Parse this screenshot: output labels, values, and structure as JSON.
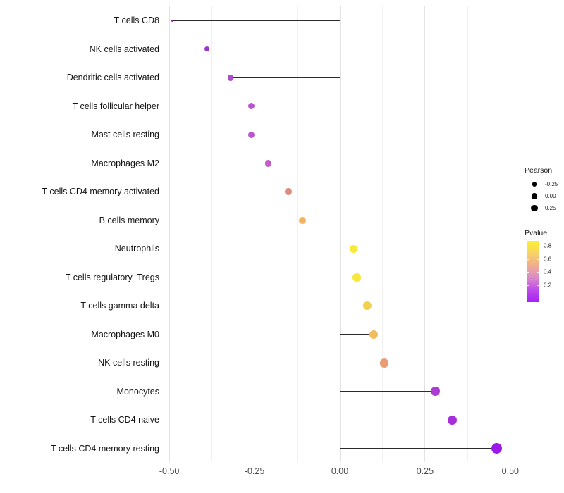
{
  "figure": {
    "background": "#ffffff",
    "legend": {
      "pearson": {
        "title": "Pearson",
        "dot_color": "#000000",
        "items": [
          {
            "label": "-0.25",
            "size": 6.5
          },
          {
            "label": "0.00",
            "size": 8.5
          },
          {
            "label": "0.25",
            "size": 9.5
          }
        ]
      },
      "pvalue": {
        "title": "Pvalue",
        "ticks": [
          "0.8",
          "0.6",
          "0.4",
          "0.2"
        ],
        "gradient": [
          "#FCF12E",
          "#F7D265",
          "#EFAE8E",
          "#DB8BC9",
          "#BC4BE9",
          "#A620F6"
        ]
      }
    }
  },
  "chart_data": {
    "type": "scatter",
    "subtype": "lollipop",
    "orientation": "horizontal",
    "title": "",
    "xlabel": "",
    "ylabel": "",
    "xlim": [
      -0.52,
      0.53
    ],
    "grid": "vertical light-gray major and minor lines on white, no axis lines",
    "legend_position": "right",
    "size_encodes": "Pearson",
    "color_encodes": "Pvalue",
    "x_ticks": [
      {
        "value": -0.5,
        "label": "-0.50"
      },
      {
        "value": -0.25,
        "label": "-0.25"
      },
      {
        "value": 0.0,
        "label": "0.00"
      },
      {
        "value": 0.25,
        "label": "0.25"
      },
      {
        "value": 0.5,
        "label": "0.50"
      }
    ],
    "x_minor_gridlines": [
      -0.375,
      -0.125,
      0.125,
      0.375
    ],
    "points": [
      {
        "category": "T cells CD8",
        "pearson": -0.49,
        "pvalue_approx": 0.02,
        "color": "#8A25BF",
        "size": 3
      },
      {
        "category": "NK cells activated",
        "pearson": -0.39,
        "pvalue_approx": 0.08,
        "color": "#9C36CB",
        "size": 7
      },
      {
        "category": "Dendritic cells activated",
        "pearson": -0.32,
        "pvalue_approx": 0.15,
        "color": "#AF4BCD",
        "size": 8.5
      },
      {
        "category": "T cells follicular helper",
        "pearson": -0.26,
        "pvalue_approx": 0.2,
        "color": "#BB54CE",
        "size": 9
      },
      {
        "category": "Mast cells resting",
        "pearson": -0.26,
        "pvalue_approx": 0.2,
        "color": "#BB54CE",
        "size": 9
      },
      {
        "category": "Macrophages M2",
        "pearson": -0.21,
        "pvalue_approx": 0.3,
        "color": "#C75BC4",
        "size": 9.5
      },
      {
        "category": "T cells CD4 memory activated",
        "pearson": -0.15,
        "pvalue_approx": 0.5,
        "color": "#E0897E",
        "size": 10
      },
      {
        "category": "B cells memory",
        "pearson": -0.11,
        "pvalue_approx": 0.62,
        "color": "#F0B466",
        "size": 10.5
      },
      {
        "category": "Neutrophils",
        "pearson": 0.04,
        "pvalue_approx": 0.8,
        "color": "#F7E93B",
        "size": 11.5
      },
      {
        "category": "T cells regulatory  Tregs",
        "pearson": 0.05,
        "pvalue_approx": 0.8,
        "color": "#F7E93B",
        "size": 11.5
      },
      {
        "category": "T cells gamma delta",
        "pearson": 0.08,
        "pvalue_approx": 0.72,
        "color": "#F2D04E",
        "size": 12
      },
      {
        "category": "Macrophages M0",
        "pearson": 0.1,
        "pvalue_approx": 0.65,
        "color": "#EFBD60",
        "size": 12
      },
      {
        "category": "NK cells resting",
        "pearson": 0.13,
        "pvalue_approx": 0.55,
        "color": "#EC9C73",
        "size": 12.5
      },
      {
        "category": "Monocytes",
        "pearson": 0.28,
        "pvalue_approx": 0.2,
        "color": "#AB3CD3",
        "size": 13
      },
      {
        "category": "T cells CD4 naive",
        "pearson": 0.33,
        "pvalue_approx": 0.14,
        "color": "#A52FD9",
        "size": 13.5
      },
      {
        "category": "T cells CD4 memory resting",
        "pearson": 0.46,
        "pvalue_approx": 0.03,
        "color": "#9C19E8",
        "size": 15
      }
    ]
  }
}
